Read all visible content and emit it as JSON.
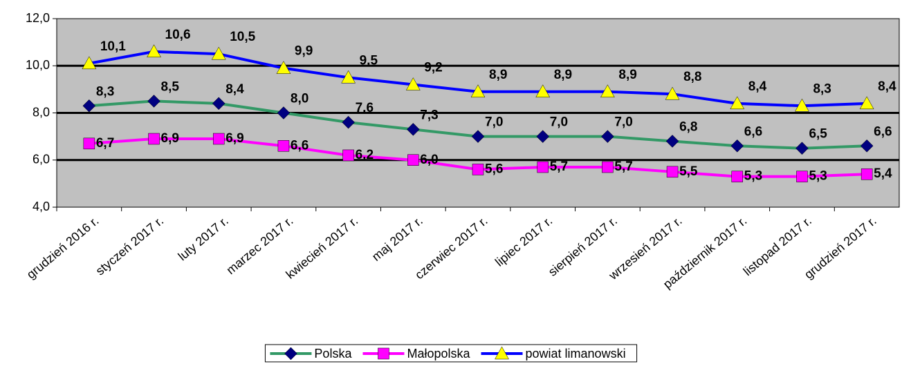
{
  "chart_data": {
    "type": "line",
    "categories": [
      "grudzień 2016 r.",
      "styczeń 2017 r.",
      "luty 2017 r.",
      "marzec 2017 r.",
      "kwiecień 2017 r.",
      "maj 2017 r.",
      "czerwiec 2017 r.",
      "lipiec 2017 r.",
      "sierpień 2017 r.",
      "wrzesień 2017 r.",
      "październik 2017 r.",
      "listopad 2017 r.",
      "grudzień 2017 r."
    ],
    "series": [
      {
        "name": "Polska",
        "color": "#339966",
        "marker_color": "#000080",
        "marker": "diamond",
        "values": [
          8.3,
          8.5,
          8.4,
          8.0,
          7.6,
          7.3,
          7.0,
          7.0,
          7.0,
          6.8,
          6.6,
          6.5,
          6.6
        ],
        "value_labels": [
          "8,3",
          "8,5",
          "8,4",
          "8,0",
          "7,6",
          "7,3",
          "7,0",
          "7,0",
          "7,0",
          "6,8",
          "6,6",
          "6,5",
          "6,6"
        ]
      },
      {
        "name": "Małopolska",
        "color": "#ff00ff",
        "marker_color": "#ff00ff",
        "marker": "square",
        "values": [
          6.7,
          6.9,
          6.9,
          6.6,
          6.2,
          6.0,
          5.6,
          5.7,
          5.7,
          5.5,
          5.3,
          5.3,
          5.4
        ],
        "value_labels": [
          "6,7",
          "6,9",
          "6,9",
          "6,6",
          "6,2",
          "6,0",
          "5,6",
          "5,7",
          "5,7",
          "5,5",
          "5,3",
          "5,3",
          "5,4"
        ]
      },
      {
        "name": "powiat limanowski",
        "color": "#0000ff",
        "marker_color": "#ffff00",
        "marker": "triangle",
        "values": [
          10.1,
          10.6,
          10.5,
          9.9,
          9.5,
          9.2,
          8.9,
          8.9,
          8.9,
          8.8,
          8.4,
          8.3,
          8.4
        ],
        "value_labels": [
          "10,1",
          "10,6",
          "10,5",
          "9,9",
          "9,5",
          "9,2",
          "8,9",
          "8,9",
          "8,9",
          "8,8",
          "8,4",
          "8,3",
          "8,4"
        ]
      }
    ],
    "ylim": [
      4,
      12
    ],
    "yticks": [
      {
        "value": 4,
        "label": "4,0"
      },
      {
        "value": 6,
        "label": "6,0"
      },
      {
        "value": 8,
        "label": "8,0"
      },
      {
        "value": 10,
        "label": "10,0"
      },
      {
        "value": 12,
        "label": "12,0"
      }
    ],
    "grid": true,
    "legend": "bottom"
  }
}
